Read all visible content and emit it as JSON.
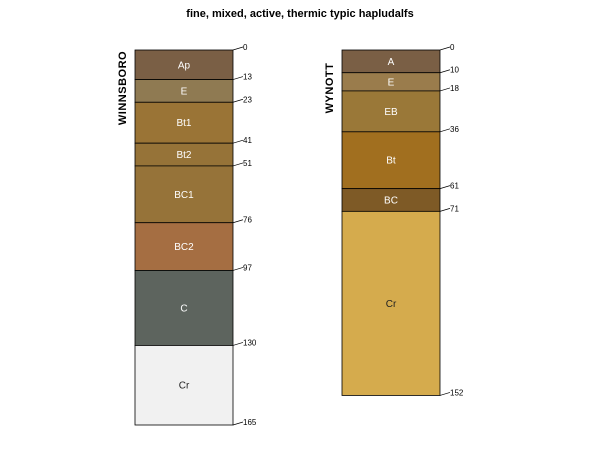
{
  "title": "fine, mixed, active, thermic typic hapludalfs",
  "chart_data": {
    "type": "soil-profile",
    "depth_unit": "cm",
    "profiles": [
      {
        "name": "WINNSBORO",
        "bottom": 165,
        "horizons": [
          {
            "name": "Ap",
            "top": 0,
            "bottom": 13,
            "color": "#7a5f45"
          },
          {
            "name": "E",
            "top": 13,
            "bottom": 23,
            "color": "#8f7a52"
          },
          {
            "name": "Bt1",
            "top": 23,
            "bottom": 41,
            "color": "#9a7436"
          },
          {
            "name": "Bt2",
            "top": 41,
            "bottom": 51,
            "color": "#967338"
          },
          {
            "name": "BC1",
            "top": 51,
            "bottom": 76,
            "color": "#967339"
          },
          {
            "name": "BC2",
            "top": 76,
            "bottom": 97,
            "color": "#a56e42"
          },
          {
            "name": "C",
            "top": 97,
            "bottom": 130,
            "color": "#5d645e"
          },
          {
            "name": "Cr",
            "top": 130,
            "bottom": 165,
            "color": "#f1f1f1",
            "dark_label": true
          }
        ],
        "depth_labels": [
          "0",
          "13",
          "23",
          "41",
          "51",
          "76",
          "97",
          "130",
          "165"
        ]
      },
      {
        "name": "WYNOTT",
        "bottom": 152,
        "horizons": [
          {
            "name": "A",
            "top": 0,
            "bottom": 10,
            "color": "#7a5f45"
          },
          {
            "name": "E",
            "top": 10,
            "bottom": 18,
            "color": "#9a7c4c"
          },
          {
            "name": "EB",
            "top": 18,
            "bottom": 36,
            "color": "#9a7838"
          },
          {
            "name": "Bt",
            "top": 36,
            "bottom": 61,
            "color": "#a16f1f"
          },
          {
            "name": "BC",
            "top": 61,
            "bottom": 71,
            "color": "#7e5a26"
          },
          {
            "name": "Cr",
            "top": 71,
            "bottom": 152,
            "color": "#d5ab4d",
            "dark_label": true
          }
        ],
        "depth_labels": [
          "0",
          "10",
          "18",
          "36",
          "61",
          "71",
          "152"
        ]
      }
    ]
  }
}
